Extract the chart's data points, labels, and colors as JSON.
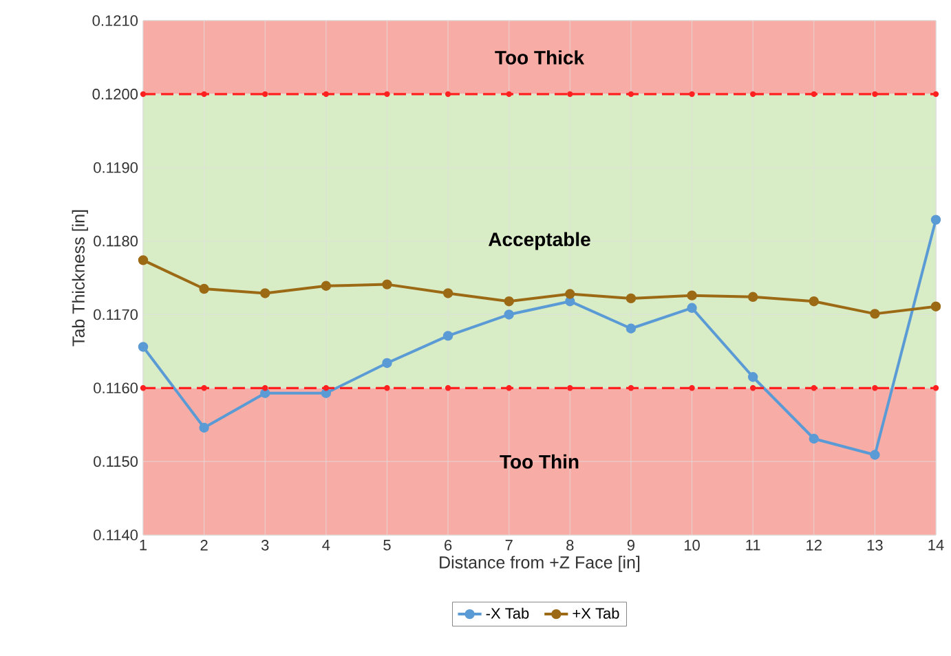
{
  "chart_data": {
    "type": "line",
    "xlabel": "Distance from +Z Face [in]",
    "ylabel": "Tab Thickness [in]",
    "x": [
      1,
      2,
      3,
      4,
      5,
      6,
      7,
      8,
      9,
      10,
      11,
      12,
      13,
      14
    ],
    "series": [
      {
        "name": "-X Tab",
        "color": "#5b9bd5",
        "values": [
          0.11656,
          0.11546,
          0.11593,
          0.11593,
          0.11634,
          0.11671,
          0.117,
          0.11718,
          0.11681,
          0.11709,
          0.11615,
          0.11531,
          0.11509,
          0.11829
        ]
      },
      {
        "name": "+X Tab",
        "color": "#9c6a14",
        "values": [
          0.11774,
          0.11735,
          0.11729,
          0.11739,
          0.11741,
          0.11729,
          0.11718,
          0.11728,
          0.11722,
          0.11726,
          0.11724,
          0.11718,
          0.11701,
          0.11711
        ]
      },
      {
        "color": "#ff2020",
        "line_style": "dashed",
        "values": [
          0.116,
          0.116,
          0.116,
          0.116,
          0.116,
          0.116,
          0.116,
          0.116,
          0.116,
          0.116,
          0.116,
          0.116,
          0.116,
          0.116
        ]
      },
      {
        "color": "#ff2020",
        "line_style": "dashed",
        "values": [
          0.12,
          0.12,
          0.12,
          0.12,
          0.12,
          0.12,
          0.12,
          0.12,
          0.12,
          0.12,
          0.12,
          0.12,
          0.12,
          0.12
        ]
      }
    ],
    "xlim": [
      1,
      14
    ],
    "xticks": [
      1,
      2,
      3,
      4,
      5,
      6,
      7,
      8,
      9,
      10,
      11,
      12,
      13,
      14
    ],
    "ylim": [
      0.114,
      0.121
    ],
    "yticks": [
      {
        "value": 0.114,
        "label": "0.1140"
      },
      {
        "value": 0.115,
        "label": "0.1150"
      },
      {
        "value": 0.116,
        "label": "0.1160"
      },
      {
        "value": 0.117,
        "label": "0.1170"
      },
      {
        "value": 0.118,
        "label": "0.1180"
      },
      {
        "value": 0.119,
        "label": "0.1190"
      },
      {
        "value": 0.12,
        "label": "0.1200"
      },
      {
        "value": 0.121,
        "label": "0.1210"
      }
    ],
    "bands": [
      {
        "axis": "y",
        "from": 0.114,
        "to": 0.116,
        "label": "Too Thin",
        "color": "#f8aca6"
      },
      {
        "axis": "y",
        "from": 0.116,
        "to": 0.12,
        "label": "Acceptable",
        "color": "#d8ecc6"
      },
      {
        "axis": "y",
        "from": 0.12,
        "to": 0.121,
        "label": "Too Thick",
        "color": "#f8aca6"
      }
    ],
    "grid": true,
    "legend": "bottom",
    "marker": "circle",
    "line_style": "solid"
  }
}
